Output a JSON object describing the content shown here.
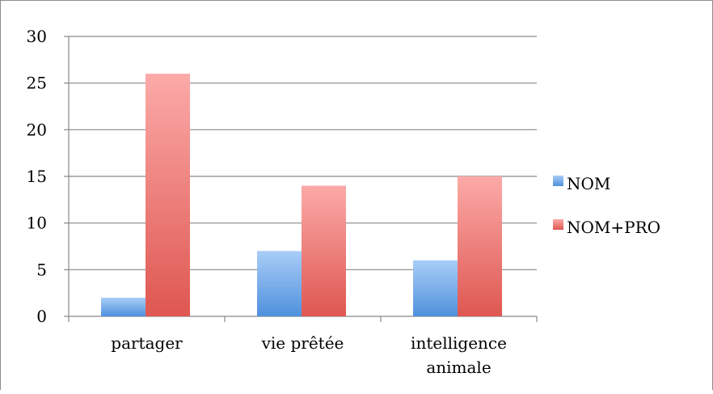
{
  "chart_data": {
    "type": "bar",
    "title": "",
    "xlabel": "",
    "ylabel": "",
    "categories": [
      "partager",
      "vie prêtée",
      "intelligence animale"
    ],
    "category_label_lines": [
      [
        "partager"
      ],
      [
        "vie prêtée"
      ],
      [
        "intelligence",
        "animale"
      ]
    ],
    "series": [
      {
        "name": "NOM",
        "values": [
          2,
          7,
          6
        ],
        "color_top": "#a9cdf7",
        "color_bottom": "#4f91dd"
      },
      {
        "name": "NOM+PRO",
        "values": [
          26,
          14,
          15
        ],
        "color_top": "#fbaaa8",
        "color_bottom": "#df5751"
      }
    ],
    "ylim": [
      0,
      30
    ],
    "yticks": [
      0,
      5,
      10,
      15,
      20,
      25,
      30
    ],
    "grid": true,
    "legend_position": "right"
  }
}
